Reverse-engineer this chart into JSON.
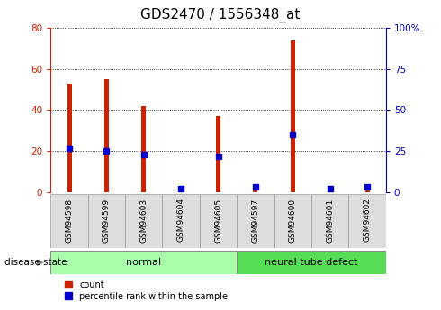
{
  "title": "GDS2470 / 1556348_at",
  "samples": [
    "GSM94598",
    "GSM94599",
    "GSM94603",
    "GSM94604",
    "GSM94605",
    "GSM94597",
    "GSM94600",
    "GSM94601",
    "GSM94602"
  ],
  "counts": [
    53,
    55,
    42,
    0,
    37,
    3,
    74,
    2,
    4
  ],
  "percentile_ranks": [
    27,
    25,
    23,
    2,
    22,
    3,
    35,
    2,
    3
  ],
  "disease_states": [
    "normal",
    "normal",
    "normal",
    "normal",
    "normal",
    "neural tube defect",
    "neural tube defect",
    "neural tube defect",
    "neural tube defect"
  ],
  "bar_color_red": "#cc2200",
  "bar_color_blue": "#0000cc",
  "ylim_left": [
    0,
    80
  ],
  "ylim_right": [
    0,
    100
  ],
  "yticks_left": [
    0,
    20,
    40,
    60,
    80
  ],
  "yticks_right": [
    0,
    25,
    50,
    75,
    100
  ],
  "left_tick_color": "#cc2200",
  "right_tick_color": "#0000cc",
  "normal_color": "#aaffaa",
  "defect_color": "#55dd55",
  "title_fontsize": 11,
  "tick_fontsize": 7.5,
  "bar_width": 0.12,
  "blue_marker_size": 4
}
